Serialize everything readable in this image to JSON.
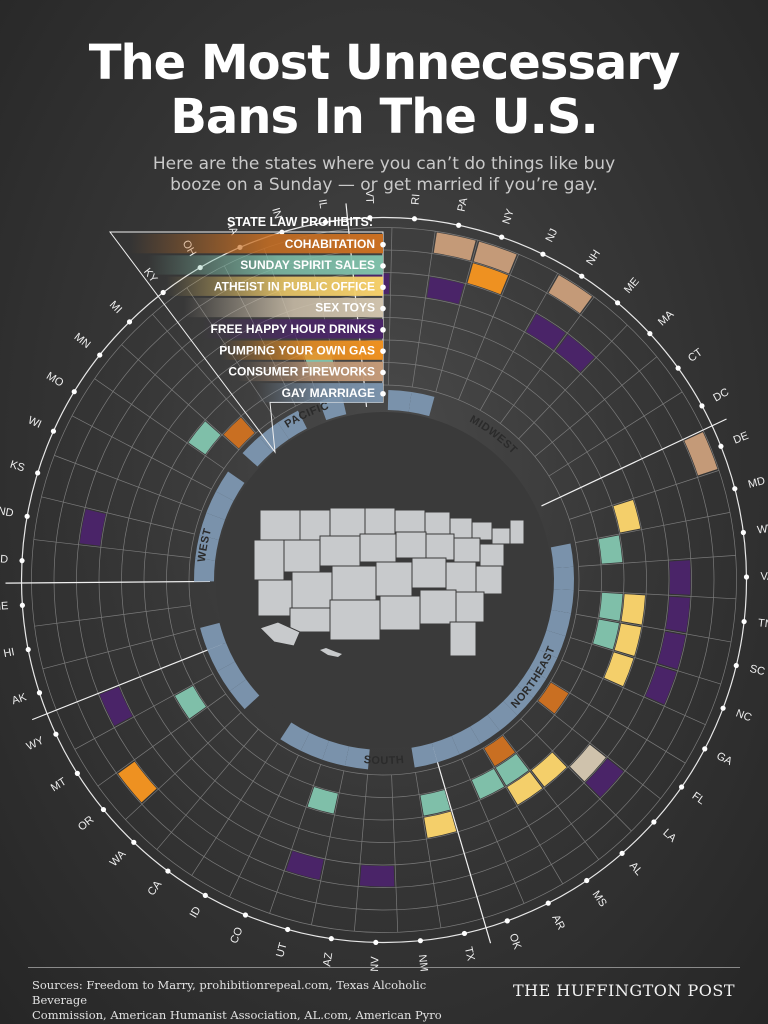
{
  "header": {
    "title_line1": "The Most Unnecessary",
    "title_line2": "Bans In The U.S.",
    "subtitle_line1": "Here are the states where you can’t do things like buy",
    "subtitle_line2": "booze on a Sunday — or get married if you’re gay."
  },
  "chart_data": {
    "type": "radial-matrix",
    "legend_title": "STATE LAW PROHIBITS:",
    "categories": [
      {
        "name": "COHABITATION",
        "color": "#c96f22"
      },
      {
        "name": "SUNDAY SPIRIT SALES",
        "color": "#7fbfa9"
      },
      {
        "name": "ATHEIST IN PUBLIC OFFICE",
        "color": "#f4cf6a"
      },
      {
        "name": "SEX TOYS",
        "color": "#cfc2ac"
      },
      {
        "name": "FREE HAPPY HOUR DRINKS",
        "color": "#4a2468"
      },
      {
        "name": "PUMPING YOUR OWN GAS",
        "color": "#ee9121"
      },
      {
        "name": "CONSUMER FIREWORKS",
        "color": "#c49a78"
      },
      {
        "name": "GAY MARRIAGE",
        "color": "#7a92ab"
      }
    ],
    "regions": [
      "PACIFIC",
      "MIDWEST",
      "NORTHEAST",
      "SOUTH",
      "WEST"
    ],
    "states": [
      {
        "abbr": "NE",
        "bans": []
      },
      {
        "abbr": "SD",
        "bans": [
          "GAY MARRIAGE"
        ]
      },
      {
        "abbr": "ND",
        "bans": [
          "GAY MARRIAGE",
          "FREE HAPPY HOUR DRINKS"
        ]
      },
      {
        "abbr": "KS",
        "bans": [
          "GAY MARRIAGE"
        ]
      },
      {
        "abbr": "WI",
        "bans": [
          "GAY MARRIAGE"
        ]
      },
      {
        "abbr": "MO",
        "bans": [
          "GAY MARRIAGE"
        ]
      },
      {
        "abbr": "MN",
        "bans": [
          "SUNDAY SPIRIT SALES"
        ]
      },
      {
        "abbr": "MI",
        "bans": [
          "GAY MARRIAGE",
          "COHABITATION"
        ]
      },
      {
        "abbr": "KY",
        "bans": [
          "GAY MARRIAGE"
        ]
      },
      {
        "abbr": "OH",
        "bans": [
          "GAY MARRIAGE"
        ]
      },
      {
        "abbr": "IA",
        "bans": []
      },
      {
        "abbr": "IN",
        "bans": [
          "GAY MARRIAGE",
          "SUNDAY SPIRIT SALES"
        ]
      },
      {
        "abbr": "IL",
        "bans": []
      },
      {
        "abbr": "VT",
        "bans": [
          "FREE HAPPY HOUR DRINKS"
        ]
      },
      {
        "abbr": "RI",
        "bans": [
          "GAY MARRIAGE"
        ]
      },
      {
        "abbr": "PA",
        "bans": [
          "GAY MARRIAGE",
          "CONSUMER FIREWORKS",
          "FREE HAPPY HOUR DRINKS"
        ]
      },
      {
        "abbr": "NY",
        "bans": [
          "CONSUMER FIREWORKS",
          "PUMPING YOUR OWN GAS"
        ]
      },
      {
        "abbr": "NJ",
        "bans": []
      },
      {
        "abbr": "NH",
        "bans": [
          "CONSUMER FIREWORKS",
          "FREE HAPPY HOUR DRINKS"
        ]
      },
      {
        "abbr": "ME",
        "bans": [
          "FREE HAPPY HOUR DRINKS"
        ]
      },
      {
        "abbr": "MA",
        "bans": []
      },
      {
        "abbr": "CT",
        "bans": []
      },
      {
        "abbr": "DC",
        "bans": []
      },
      {
        "abbr": "DE",
        "bans": [
          "CONSUMER FIREWORKS"
        ]
      },
      {
        "abbr": "MD",
        "bans": [
          "ATHEIST IN PUBLIC OFFICE"
        ]
      },
      {
        "abbr": "WV",
        "bans": [
          "GAY MARRIAGE",
          "SUNDAY SPIRIT SALES"
        ]
      },
      {
        "abbr": "VA",
        "bans": [
          "GAY MARRIAGE",
          "FREE HAPPY HOUR DRINKS"
        ]
      },
      {
        "abbr": "TN",
        "bans": [
          "GAY MARRIAGE",
          "FREE HAPPY HOUR DRINKS",
          "ATHEIST IN PUBLIC OFFICE",
          "SUNDAY SPIRIT SALES"
        ]
      },
      {
        "abbr": "SC",
        "bans": [
          "GAY MARRIAGE",
          "FREE HAPPY HOUR DRINKS",
          "ATHEIST IN PUBLIC OFFICE",
          "SUNDAY SPIRIT SALES"
        ]
      },
      {
        "abbr": "NC",
        "bans": [
          "GAY MARRIAGE",
          "FREE HAPPY HOUR DRINKS",
          "ATHEIST IN PUBLIC OFFICE"
        ]
      },
      {
        "abbr": "GA",
        "bans": [
          "GAY MARRIAGE"
        ]
      },
      {
        "abbr": "FL",
        "bans": [
          "GAY MARRIAGE",
          "COHABITATION"
        ]
      },
      {
        "abbr": "LA",
        "bans": [
          "GAY MARRIAGE",
          "FREE HAPPY HOUR DRINKS",
          "SEX TOYS"
        ]
      },
      {
        "abbr": "AL",
        "bans": [
          "GAY MARRIAGE",
          "ATHEIST IN PUBLIC OFFICE"
        ]
      },
      {
        "abbr": "MS",
        "bans": [
          "GAY MARRIAGE",
          "ATHEIST IN PUBLIC OFFICE",
          "SUNDAY SPIRIT SALES",
          "COHABITATION"
        ]
      },
      {
        "abbr": "AR",
        "bans": [
          "GAY MARRIAGE",
          "SUNDAY SPIRIT SALES"
        ]
      },
      {
        "abbr": "OK",
        "bans": [
          "GAY MARRIAGE"
        ]
      },
      {
        "abbr": "TX",
        "bans": [
          "GAY MARRIAGE",
          "ATHEIST IN PUBLIC OFFICE",
          "SUNDAY SPIRIT SALES"
        ]
      },
      {
        "abbr": "NM",
        "bans": []
      },
      {
        "abbr": "NV",
        "bans": [
          "FREE HAPPY HOUR DRINKS"
        ]
      },
      {
        "abbr": "AZ",
        "bans": [
          "GAY MARRIAGE"
        ]
      },
      {
        "abbr": "UT",
        "bans": [
          "GAY MARRIAGE",
          "SUNDAY SPIRIT SALES",
          "FREE HAPPY HOUR DRINKS"
        ]
      },
      {
        "abbr": "CO",
        "bans": [
          "GAY MARRIAGE"
        ]
      },
      {
        "abbr": "ID",
        "bans": [
          "GAY MARRIAGE"
        ]
      },
      {
        "abbr": "CA",
        "bans": []
      },
      {
        "abbr": "WA",
        "bans": []
      },
      {
        "abbr": "OR",
        "bans": [
          "GAY MARRIAGE",
          "PUMPING YOUR OWN GAS"
        ]
      },
      {
        "abbr": "MT",
        "bans": [
          "GAY MARRIAGE",
          "SUNDAY SPIRIT SALES"
        ]
      },
      {
        "abbr": "WY",
        "bans": [
          "GAY MARRIAGE",
          "FREE HAPPY HOUR DRINKS"
        ]
      },
      {
        "abbr": "AK",
        "bans": [
          "GAY MARRIAGE"
        ]
      },
      {
        "abbr": "HI",
        "bans": []
      }
    ]
  },
  "footer": {
    "sources_line1": "Sources: Freedom to Marry, prohibitionrepeal.com, Texas Alcoholic Beverage",
    "sources_line2": "Commission, American Humanist Association, AL.com, American Pyro",
    "brand": "THE HUFFINGTON POST"
  },
  "colors": {
    "grid": "#7b7b7b",
    "label": "#eeeeee",
    "map_fill": "#c8cacc",
    "gay_marriage_ring": "#7a92ab"
  }
}
